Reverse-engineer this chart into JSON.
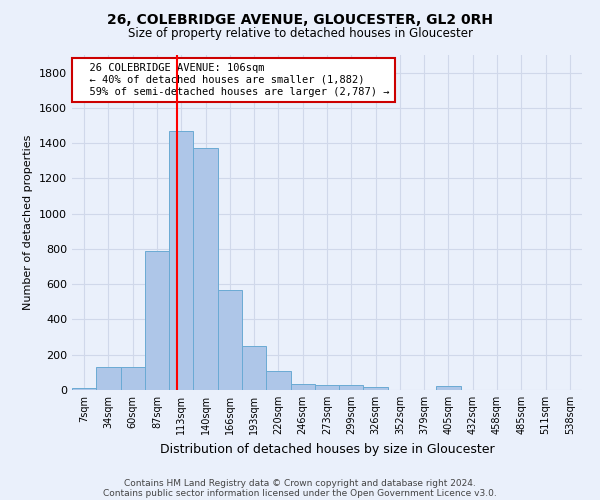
{
  "title1": "26, COLEBRIDGE AVENUE, GLOUCESTER, GL2 0RH",
  "title2": "Size of property relative to detached houses in Gloucester",
  "xlabel": "Distribution of detached houses by size in Gloucester",
  "ylabel": "Number of detached properties",
  "bin_labels": [
    "7sqm",
    "34sqm",
    "60sqm",
    "87sqm",
    "113sqm",
    "140sqm",
    "166sqm",
    "193sqm",
    "220sqm",
    "246sqm",
    "273sqm",
    "299sqm",
    "326sqm",
    "352sqm",
    "379sqm",
    "405sqm",
    "432sqm",
    "458sqm",
    "485sqm",
    "511sqm",
    "538sqm"
  ],
  "bar_values": [
    10,
    130,
    130,
    790,
    1470,
    1370,
    570,
    250,
    110,
    35,
    30,
    30,
    18,
    0,
    0,
    20,
    0,
    0,
    0,
    0,
    0
  ],
  "bar_color": "#aec6e8",
  "bar_edge_color": "#6aaad4",
  "redline_x": 3.82,
  "annotation_text": "  26 COLEBRIDGE AVENUE: 106sqm\n  ← 40% of detached houses are smaller (1,882)\n  59% of semi-detached houses are larger (2,787) →",
  "annotation_box_color": "#ffffff",
  "annotation_border_color": "#cc0000",
  "ylim": [
    0,
    1900
  ],
  "yticks": [
    0,
    200,
    400,
    600,
    800,
    1000,
    1200,
    1400,
    1600,
    1800
  ],
  "footer1": "Contains HM Land Registry data © Crown copyright and database right 2024.",
  "footer2": "Contains public sector information licensed under the Open Government Licence v3.0.",
  "bg_color": "#eaf0fb",
  "plot_bg_color": "#eaf0fb",
  "grid_color": "#d0d8ea"
}
